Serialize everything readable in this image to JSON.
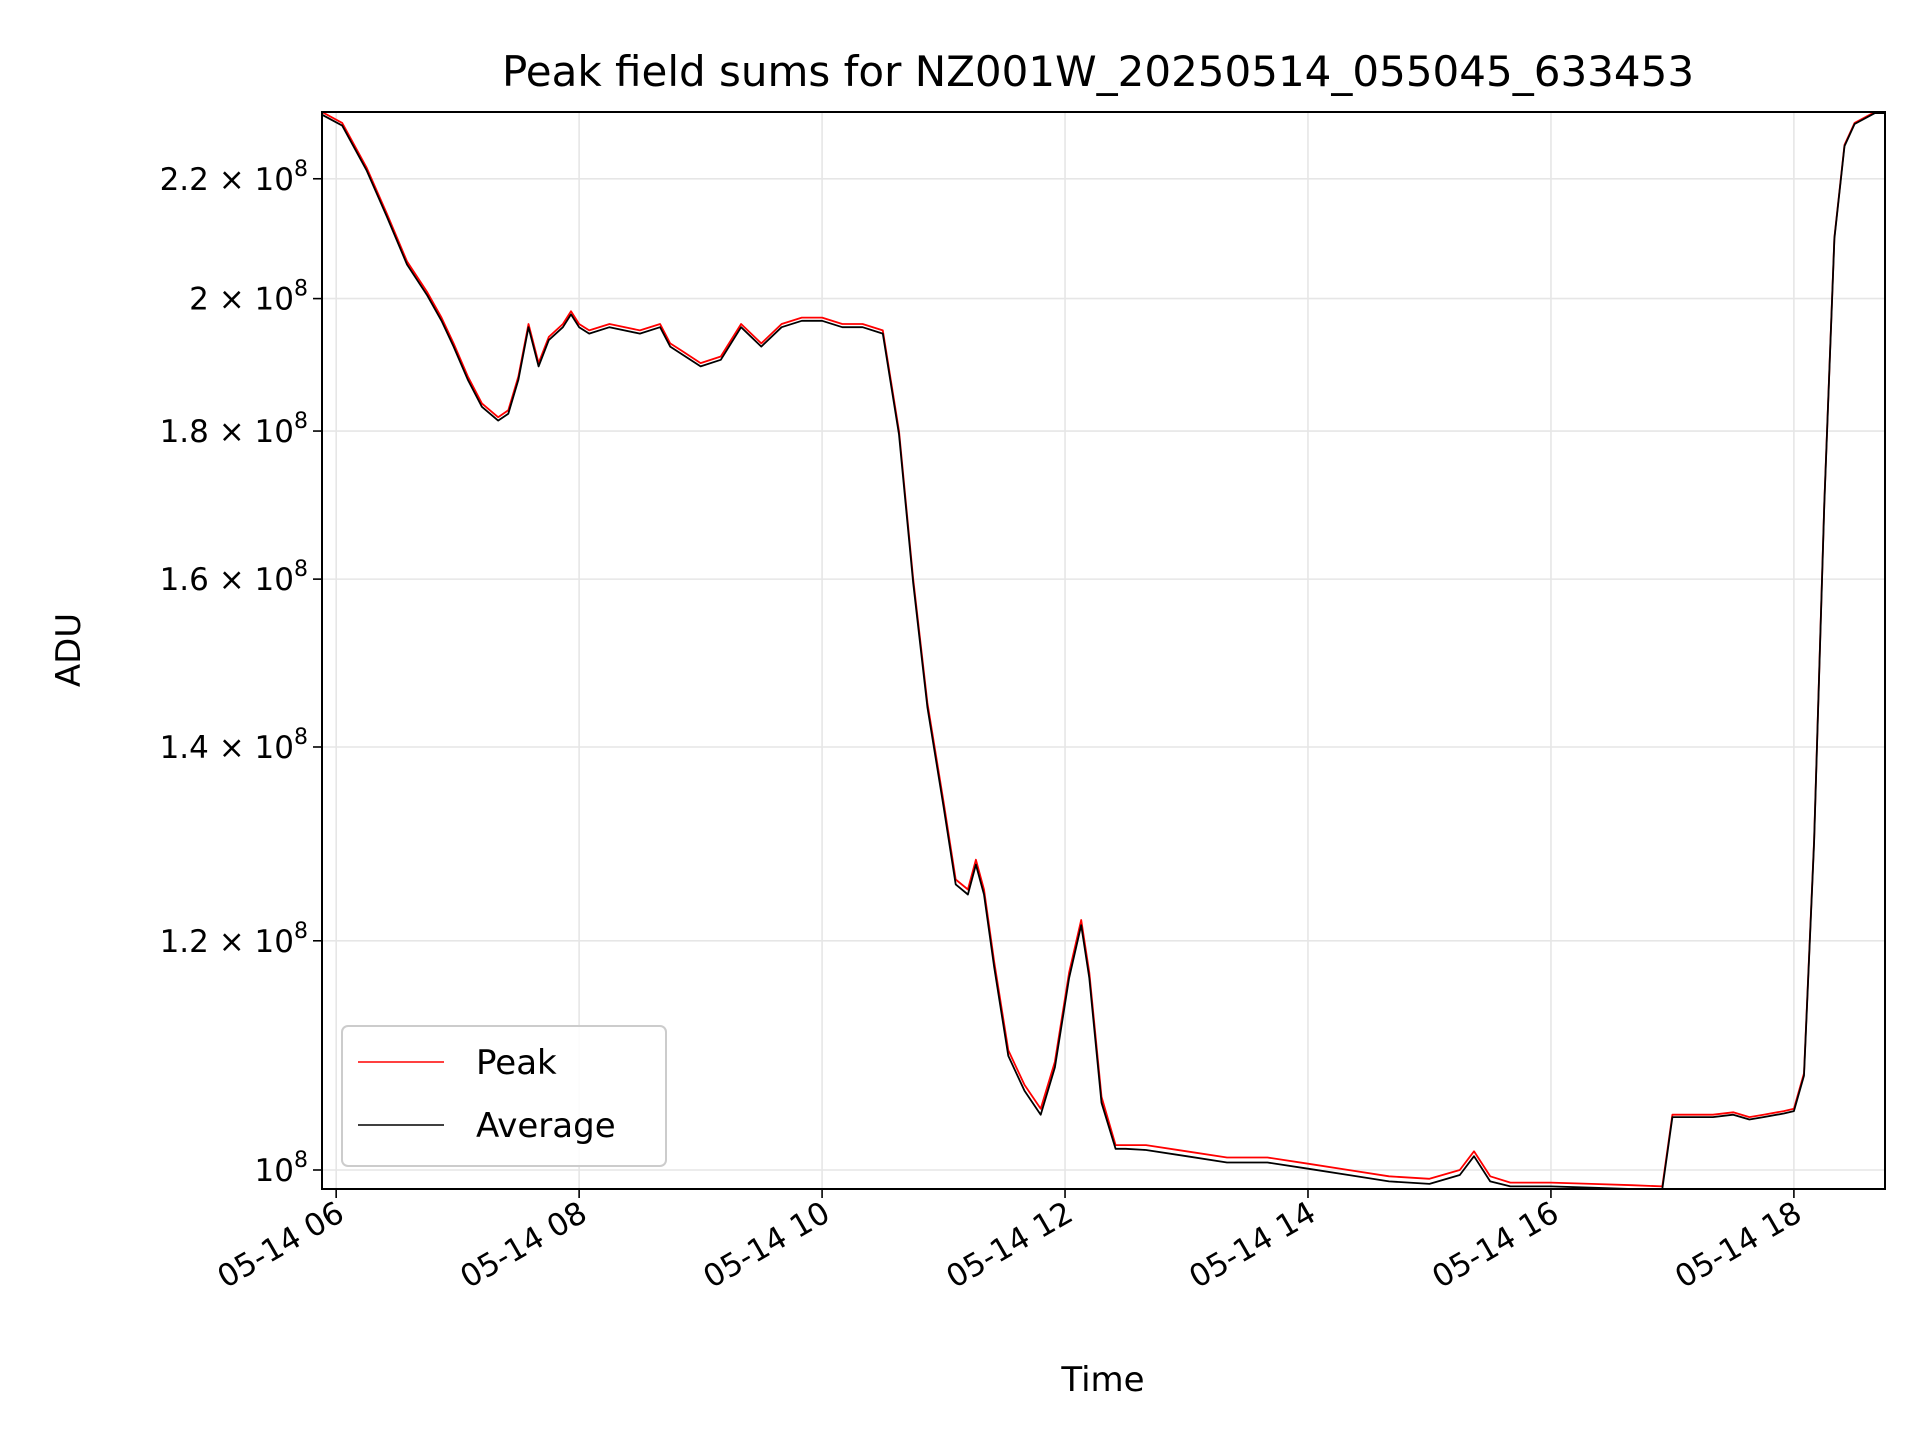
{
  "chart_data": {
    "type": "line",
    "title": "Peak field sums for NZ001W_20250514_055045_633453",
    "xlabel": "Time",
    "ylabel": "ADU",
    "yscale": "log",
    "ylim": [
      98500000,
      232000000
    ],
    "xlim": [
      "05-14 05:53",
      "05-14 18:45"
    ],
    "grid": true,
    "legend_position": "lower-left",
    "x_ticks": [
      {
        "value": "05-14 06:00",
        "label": "05-14 06"
      },
      {
        "value": "05-14 08:00",
        "label": "05-14 08"
      },
      {
        "value": "05-14 10:00",
        "label": "05-14 10"
      },
      {
        "value": "05-14 12:00",
        "label": "05-14 12"
      },
      {
        "value": "05-14 14:00",
        "label": "05-14 14"
      },
      {
        "value": "05-14 16:00",
        "label": "05-14 16"
      },
      {
        "value": "05-14 18:00",
        "label": "05-14 18"
      }
    ],
    "y_ticks": [
      {
        "value": 100000000,
        "mantissa": "",
        "exponent": "8"
      },
      {
        "value": 120000000,
        "mantissa": "1.2",
        "exponent": "8"
      },
      {
        "value": 140000000,
        "mantissa": "1.4",
        "exponent": "8"
      },
      {
        "value": 160000000,
        "mantissa": "1.6",
        "exponent": "8"
      },
      {
        "value": 180000000,
        "mantissa": "1.8",
        "exponent": "8"
      },
      {
        "value": 200000000,
        "mantissa": "2",
        "exponent": "8"
      },
      {
        "value": 220000000,
        "mantissa": "2.2",
        "exponent": "8"
      }
    ],
    "series": [
      {
        "name": "Peak",
        "color": "#ff0000",
        "x": [
          "05-14 05:53",
          "05-14 06:03",
          "05-14 06:15",
          "05-14 06:25",
          "05-14 06:35",
          "05-14 06:45",
          "05-14 06:52",
          "05-14 06:58",
          "05-14 07:05",
          "05-14 07:12",
          "05-14 07:20",
          "05-14 07:25",
          "05-14 07:30",
          "05-14 07:35",
          "05-14 07:40",
          "05-14 07:45",
          "05-14 07:52",
          "05-14 07:56",
          "05-14 08:00",
          "05-14 08:05",
          "05-14 08:15",
          "05-14 08:30",
          "05-14 08:40",
          "05-14 08:45",
          "05-14 08:50",
          "05-14 09:00",
          "05-14 09:10",
          "05-14 09:20",
          "05-14 09:30",
          "05-14 09:40",
          "05-14 09:50",
          "05-14 10:00",
          "05-14 10:10",
          "05-14 10:20",
          "05-14 10:30",
          "05-14 10:38",
          "05-14 10:45",
          "05-14 10:52",
          "05-14 11:00",
          "05-14 11:06",
          "05-14 11:12",
          "05-14 11:16",
          "05-14 11:20",
          "05-14 11:25",
          "05-14 11:32",
          "05-14 11:40",
          "05-14 11:48",
          "05-14 11:55",
          "05-14 12:02",
          "05-14 12:08",
          "05-14 12:12",
          "05-14 12:18",
          "05-14 12:25",
          "05-14 12:30",
          "05-14 12:40",
          "05-14 13:00",
          "05-14 13:20",
          "05-14 13:40",
          "05-14 14:00",
          "05-14 14:20",
          "05-14 14:40",
          "05-14 15:00",
          "05-14 15:15",
          "05-14 15:22",
          "05-14 15:30",
          "05-14 15:40",
          "05-14 16:00",
          "05-14 16:20",
          "05-14 16:40",
          "05-14 16:55",
          "05-14 17:00",
          "05-14 17:10",
          "05-14 17:20",
          "05-14 17:30",
          "05-14 17:38",
          "05-14 17:45",
          "05-14 17:55",
          "05-14 18:00",
          "05-14 18:05",
          "05-14 18:10",
          "05-14 18:15",
          "05-14 18:20",
          "05-14 18:25",
          "05-14 18:30",
          "05-14 18:40",
          "05-14 18:45"
        ],
        "values": [
          232000000,
          230000000,
          222000000,
          214000000,
          206000000,
          201000000,
          197000000,
          193000000,
          188000000,
          184000000,
          182000000,
          183000000,
          188000000,
          196000000,
          190000000,
          194000000,
          196000000,
          198000000,
          196000000,
          195000000,
          196000000,
          195000000,
          196000000,
          193000000,
          192000000,
          190000000,
          191000000,
          196000000,
          193000000,
          196000000,
          197000000,
          197000000,
          196000000,
          196000000,
          195000000,
          180000000,
          160000000,
          145000000,
          134000000,
          126000000,
          125000000,
          128000000,
          125000000,
          118000000,
          110000000,
          107000000,
          105000000,
          109000000,
          117000000,
          122000000,
          117000000,
          106000000,
          102000000,
          102000000,
          102000000,
          101500000,
          101000000,
          101000000,
          100500000,
          100000000,
          99500000,
          99300000,
          100000000,
          101500000,
          99500000,
          99000000,
          99000000,
          98900000,
          98800000,
          98700000,
          104500000,
          104500000,
          104500000,
          104700000,
          104300000,
          104500000,
          104800000,
          105000000,
          108000000,
          130000000,
          170000000,
          210000000,
          226000000,
          230000000,
          232000000,
          232000000
        ]
      },
      {
        "name": "Average",
        "color": "#000000",
        "x": [
          "05-14 05:53",
          "05-14 06:03",
          "05-14 06:15",
          "05-14 06:25",
          "05-14 06:35",
          "05-14 06:45",
          "05-14 06:52",
          "05-14 06:58",
          "05-14 07:05",
          "05-14 07:12",
          "05-14 07:20",
          "05-14 07:25",
          "05-14 07:30",
          "05-14 07:35",
          "05-14 07:40",
          "05-14 07:45",
          "05-14 07:52",
          "05-14 07:56",
          "05-14 08:00",
          "05-14 08:05",
          "05-14 08:15",
          "05-14 08:30",
          "05-14 08:40",
          "05-14 08:45",
          "05-14 08:50",
          "05-14 09:00",
          "05-14 09:10",
          "05-14 09:20",
          "05-14 09:30",
          "05-14 09:40",
          "05-14 09:50",
          "05-14 10:00",
          "05-14 10:10",
          "05-14 10:20",
          "05-14 10:30",
          "05-14 10:38",
          "05-14 10:45",
          "05-14 10:52",
          "05-14 11:00",
          "05-14 11:06",
          "05-14 11:12",
          "05-14 11:16",
          "05-14 11:20",
          "05-14 11:25",
          "05-14 11:32",
          "05-14 11:40",
          "05-14 11:48",
          "05-14 11:55",
          "05-14 12:02",
          "05-14 12:08",
          "05-14 12:12",
          "05-14 12:18",
          "05-14 12:25",
          "05-14 12:30",
          "05-14 12:40",
          "05-14 13:00",
          "05-14 13:20",
          "05-14 13:40",
          "05-14 14:00",
          "05-14 14:20",
          "05-14 14:40",
          "05-14 15:00",
          "05-14 15:15",
          "05-14 15:22",
          "05-14 15:30",
          "05-14 15:40",
          "05-14 16:00",
          "05-14 16:20",
          "05-14 16:40",
          "05-14 16:55",
          "05-14 17:00",
          "05-14 17:10",
          "05-14 17:20",
          "05-14 17:30",
          "05-14 17:38",
          "05-14 17:45",
          "05-14 17:55",
          "05-14 18:00",
          "05-14 18:05",
          "05-14 18:10",
          "05-14 18:15",
          "05-14 18:20",
          "05-14 18:25",
          "05-14 18:30",
          "05-14 18:40",
          "05-14 18:45"
        ],
        "values": [
          231500000,
          229500000,
          221500000,
          213500000,
          205500000,
          200500000,
          196500000,
          192500000,
          187500000,
          183500000,
          181500000,
          182500000,
          187500000,
          195500000,
          189500000,
          193500000,
          195500000,
          197500000,
          195500000,
          194500000,
          195500000,
          194500000,
          195500000,
          192500000,
          191500000,
          189500000,
          190500000,
          195500000,
          192500000,
          195500000,
          196500000,
          196500000,
          195500000,
          195500000,
          194500000,
          179500000,
          159500000,
          144500000,
          133500000,
          125500000,
          124500000,
          127500000,
          124500000,
          117500000,
          109500000,
          106500000,
          104500000,
          108500000,
          116500000,
          121500000,
          116500000,
          105500000,
          101700000,
          101700000,
          101600000,
          101100000,
          100600000,
          100600000,
          100100000,
          99600000,
          99100000,
          98900000,
          99600000,
          101100000,
          99100000,
          98700000,
          98700000,
          98600000,
          98500000,
          98500000,
          104300000,
          104300000,
          104300000,
          104500000,
          104100000,
          104300000,
          104600000,
          104800000,
          107800000,
          129800000,
          169800000,
          209800000,
          225800000,
          229800000,
          231800000,
          231800000
        ]
      }
    ]
  }
}
